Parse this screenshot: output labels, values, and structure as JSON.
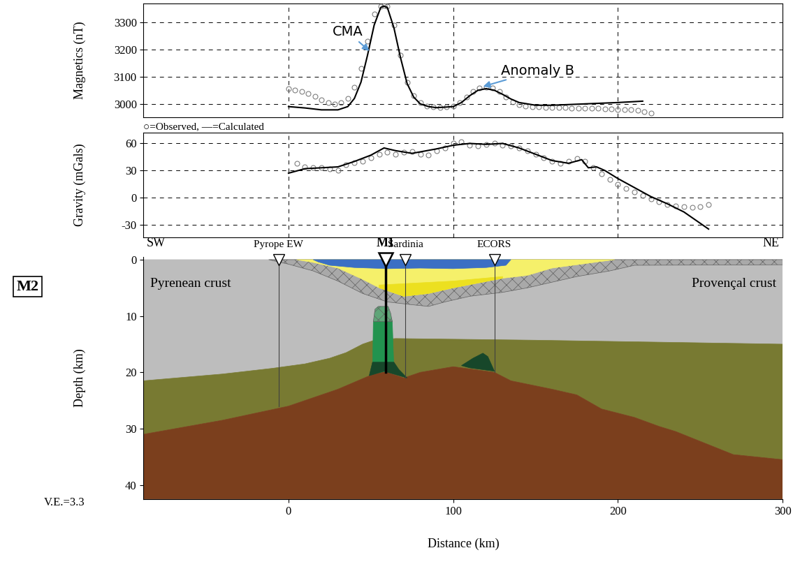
{
  "label": "M2",
  "vertical_exaggeration": "V.E.=3.3",
  "chart_data": [
    {
      "type": "line",
      "ylabel": "Magnetics (nT)",
      "xlim": [
        -88,
        300
      ],
      "xticks": [
        0,
        100,
        200
      ],
      "ylim": [
        2950,
        3370
      ],
      "yticks": [
        3000,
        3100,
        3200,
        3300
      ],
      "grid": true,
      "tick_labels": "y",
      "series": [
        {
          "type": "scatter",
          "marker": "o",
          "color": "#7f7f7f",
          "x": [
            0,
            4,
            8,
            12,
            16,
            20,
            24,
            28,
            32,
            36,
            40,
            44,
            48,
            52,
            56,
            58,
            60,
            64,
            68,
            72,
            76,
            80,
            84,
            88,
            92,
            96,
            100,
            104,
            108,
            112,
            116,
            120,
            124,
            128,
            132,
            136,
            140,
            144,
            148,
            152,
            156,
            160,
            164,
            168,
            172,
            176,
            180,
            184,
            188,
            192,
            196,
            200,
            204,
            208,
            212,
            216,
            220
          ],
          "values": [
            3055,
            3050,
            3045,
            3038,
            3028,
            3015,
            3005,
            3000,
            3005,
            3020,
            3060,
            3130,
            3230,
            3330,
            3360,
            3363,
            3358,
            3290,
            3180,
            3080,
            3030,
            3005,
            2993,
            2988,
            2987,
            2988,
            2992,
            3005,
            3025,
            3045,
            3058,
            3062,
            3058,
            3045,
            3025,
            3008,
            2998,
            2992,
            2990,
            2988,
            2987,
            2987,
            2986,
            2986,
            2985,
            2985,
            2985,
            2984,
            2983,
            2982,
            2981,
            2980,
            2979,
            2978,
            2977,
            2972,
            2966
          ]
        },
        {
          "type": "line",
          "line_style": "solid",
          "color": "#000000",
          "x": [
            0,
            10,
            20,
            30,
            36,
            40,
            44,
            48,
            52,
            56,
            58,
            60,
            64,
            68,
            72,
            76,
            80,
            85,
            90,
            100,
            105,
            110,
            115,
            120,
            125,
            130,
            135,
            140,
            150,
            160,
            180,
            200,
            215
          ],
          "values": [
            2990,
            2985,
            2978,
            2978,
            2990,
            3020,
            3080,
            3180,
            3290,
            3355,
            3360,
            3355,
            3280,
            3170,
            3075,
            3025,
            3000,
            2990,
            2986,
            2990,
            3005,
            3030,
            3050,
            3056,
            3050,
            3035,
            3018,
            3005,
            2995,
            2995,
            3000,
            3005,
            3010
          ]
        }
      ],
      "annotations": [
        {
          "text": "CMA",
          "x": 50,
          "y": 3190
        },
        {
          "text": "Anomaly B",
          "x": 117,
          "y": 3062
        }
      ]
    },
    {
      "type": "line",
      "ylabel": "Gravity (mGals)",
      "legend_text": "○=Observed, —=Calculated",
      "xlim": [
        -88,
        300
      ],
      "xticks": [
        0,
        100,
        200
      ],
      "ylim": [
        -44,
        72
      ],
      "yticks": [
        -30,
        0,
        30,
        60
      ],
      "grid": true,
      "tick_labels": "y",
      "series": [
        {
          "type": "scatter",
          "marker": "o",
          "color": "#7f7f7f",
          "x": [
            5,
            10,
            15,
            20,
            25,
            30,
            35,
            40,
            45,
            50,
            55,
            60,
            65,
            70,
            75,
            80,
            85,
            90,
            95,
            100,
            105,
            110,
            115,
            120,
            125,
            130,
            135,
            140,
            145,
            150,
            155,
            160,
            165,
            170,
            175,
            180,
            185,
            190,
            195,
            200,
            205,
            210,
            215,
            220,
            225,
            230,
            235,
            240,
            245,
            250,
            255
          ],
          "values": [
            38,
            34,
            33,
            33,
            32,
            30,
            36,
            39,
            40,
            44,
            48,
            50,
            48,
            50,
            51,
            48,
            47,
            52,
            55,
            60,
            62,
            58,
            57,
            59,
            60,
            58,
            57,
            55,
            52,
            48,
            44,
            40,
            38,
            40,
            43,
            40,
            33,
            26,
            20,
            15,
            10,
            6,
            2,
            -2,
            -5,
            -8,
            -9,
            -10,
            -11,
            -10,
            -8
          ]
        },
        {
          "type": "line",
          "line_style": "solid",
          "color": "#000000",
          "x": [
            0,
            10,
            20,
            30,
            40,
            50,
            58,
            65,
            75,
            90,
            100,
            110,
            120,
            130,
            140,
            150,
            160,
            170,
            178,
            182,
            187,
            192,
            200,
            210,
            220,
            230,
            240,
            255
          ],
          "values": [
            27,
            32,
            33,
            34,
            40,
            47,
            55,
            52,
            49,
            54,
            58,
            60,
            59,
            60,
            55,
            48,
            41,
            38,
            42,
            33,
            34,
            30,
            21,
            11,
            1,
            -7,
            -16,
            -35
          ]
        }
      ]
    },
    {
      "type": "section",
      "xlabel": "Distance (km)",
      "ylabel": "Depth (km)",
      "xlim": [
        -88,
        300
      ],
      "xticks": [
        0,
        100,
        200,
        300
      ],
      "ylim": [
        42.5,
        -0.5
      ],
      "yticks": [
        0,
        10,
        20,
        30,
        40
      ],
      "grid": false,
      "corner_labels": [
        "SW",
        "NE"
      ],
      "region_labels": [
        "Pyrenean crust",
        "Provençal crust"
      ],
      "stations": [
        {
          "label": "Pyrope EW",
          "x": -6,
          "depth": 26,
          "type": "site"
        },
        {
          "label": "M1",
          "x": 59,
          "depth": 20,
          "type": "main"
        },
        {
          "label": "Sardinia",
          "x": 71,
          "depth": 21,
          "type": "site"
        },
        {
          "label": "ECORS",
          "x": 125,
          "depth": 20,
          "type": "site"
        }
      ],
      "bodies": [
        {
          "type": "fill",
          "color": "#bdbdbd",
          "x": [
            -88,
            300,
            300,
            150,
            65,
            52,
            45,
            35,
            25,
            10,
            -10,
            -40,
            -88
          ],
          "depth": [
            0,
            0,
            15,
            14.3,
            14,
            14.3,
            15,
            16.5,
            17.5,
            18.5,
            19.3,
            20.3,
            21.5
          ]
        },
        {
          "type": "hatched",
          "color": "#a9a9a9",
          "x": [
            -12,
            300,
            300,
            210,
            195,
            175,
            160,
            145,
            130,
            110,
            95,
            85,
            75,
            60,
            45,
            30,
            15,
            0
          ],
          "depth": [
            0,
            0,
            0.9,
            1,
            2,
            3,
            4,
            5,
            5.8,
            6.5,
            7.5,
            8.3,
            8,
            7.5,
            6,
            3.8,
            2,
            0.8
          ]
        },
        {
          "type": "fill",
          "color": "#f5f06a",
          "x": [
            5,
            198,
            160,
            145,
            130,
            100,
            85,
            70,
            55,
            45,
            30,
            15
          ],
          "depth": [
            0,
            0,
            1.5,
            2.8,
            3.3,
            5,
            6,
            6.5,
            5,
            3.5,
            1.5,
            0.5
          ]
        },
        {
          "type": "fill",
          "color": "#ece020",
          "x": [
            55,
            100,
            130,
            130,
            100,
            85,
            70,
            55
          ],
          "depth": [
            4.5,
            3.8,
            3.0,
            3.3,
            5,
            6,
            6.5,
            5
          ]
        },
        {
          "type": "fill",
          "color": "#3b6fc4",
          "x": [
            15,
            135,
            132,
            120,
            100,
            80,
            60,
            40,
            25,
            18
          ],
          "depth": [
            0,
            0,
            1,
            1.4,
            1.6,
            1.5,
            1.6,
            1.4,
            1.0,
            0.4
          ]
        },
        {
          "type": "fill",
          "color": "#787a32",
          "x": [
            -88,
            -40,
            -10,
            10,
            25,
            35,
            45,
            52,
            65,
            150,
            300,
            300,
            270,
            235,
            225,
            210,
            190,
            175,
            160,
            135,
            125,
            100,
            80,
            70,
            58,
            50,
            30,
            0,
            -40,
            -88
          ],
          "depth": [
            21.5,
            20.3,
            19.3,
            18.5,
            17.5,
            16.5,
            15,
            14.3,
            14,
            14.3,
            15,
            35.5,
            34.6,
            30.5,
            29.6,
            28,
            26.5,
            24,
            23,
            21.5,
            20,
            19,
            20,
            21,
            19.8,
            20.5,
            23,
            26,
            28.5,
            31
          ]
        },
        {
          "type": "fill",
          "color": "#7b3f1d",
          "x": [
            -88,
            -40,
            0,
            30,
            50,
            58,
            70,
            80,
            100,
            125,
            135,
            160,
            175,
            190,
            210,
            225,
            235,
            270,
            300,
            300,
            -88
          ],
          "depth": [
            31,
            28.5,
            26,
            23,
            20.5,
            19.8,
            21,
            20,
            19,
            20,
            21.5,
            23,
            24,
            26.5,
            28,
            29.6,
            30.5,
            34.6,
            35.5,
            42.5,
            42.5
          ]
        },
        {
          "type": "fill",
          "color": "#22934f",
          "x": [
            51,
            51.5,
            53,
            62,
            63,
            64
          ],
          "depth": [
            20.3,
            11,
            10,
            10,
            11,
            19.5
          ]
        },
        {
          "type": "hatched",
          "color": "#5fa578",
          "x": [
            51.5,
            52.5,
            54.5,
            60.5,
            62,
            63
          ],
          "depth": [
            11,
            8.8,
            8.3,
            8.3,
            9.5,
            11
          ]
        },
        {
          "type": "fill",
          "color": "#17472a",
          "x": [
            49,
            51,
            64,
            67,
            72,
            58
          ],
          "depth": [
            20.6,
            18.2,
            18.2,
            19.5,
            21,
            19.8
          ]
        },
        {
          "type": "fill",
          "color": "#17472a",
          "x": [
            105,
            112,
            118,
            121,
            125,
            110
          ],
          "depth": [
            18.8,
            17.5,
            16.6,
            17.2,
            19.8,
            19.2
          ]
        }
      ]
    }
  ]
}
